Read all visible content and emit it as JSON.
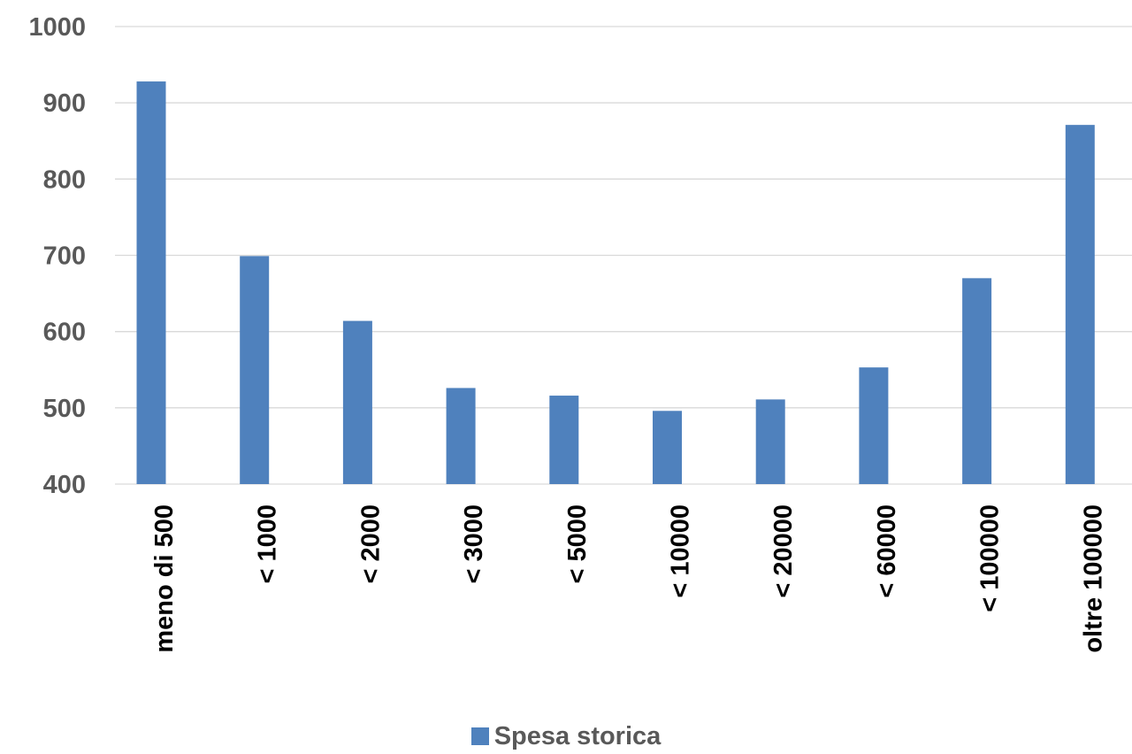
{
  "chart_data": {
    "type": "bar",
    "title": "",
    "xlabel": "",
    "ylabel": "",
    "categories": [
      "meno di 500",
      "< 1000",
      "< 2000",
      "< 3000",
      "< 5000",
      "< 10000",
      "< 20000",
      "< 60000",
      "< 100000",
      "oltre 100000"
    ],
    "series": [
      {
        "name": "Spesa storica",
        "color": "#4f81bd",
        "values": [
          928,
          699,
          614,
          526,
          516,
          496,
          511,
          553,
          670,
          871
        ]
      }
    ],
    "ylim": [
      400,
      1000
    ],
    "yticks": [
      400,
      500,
      600,
      700,
      800,
      900,
      1000
    ],
    "grid": true,
    "legend_position": "bottom"
  }
}
